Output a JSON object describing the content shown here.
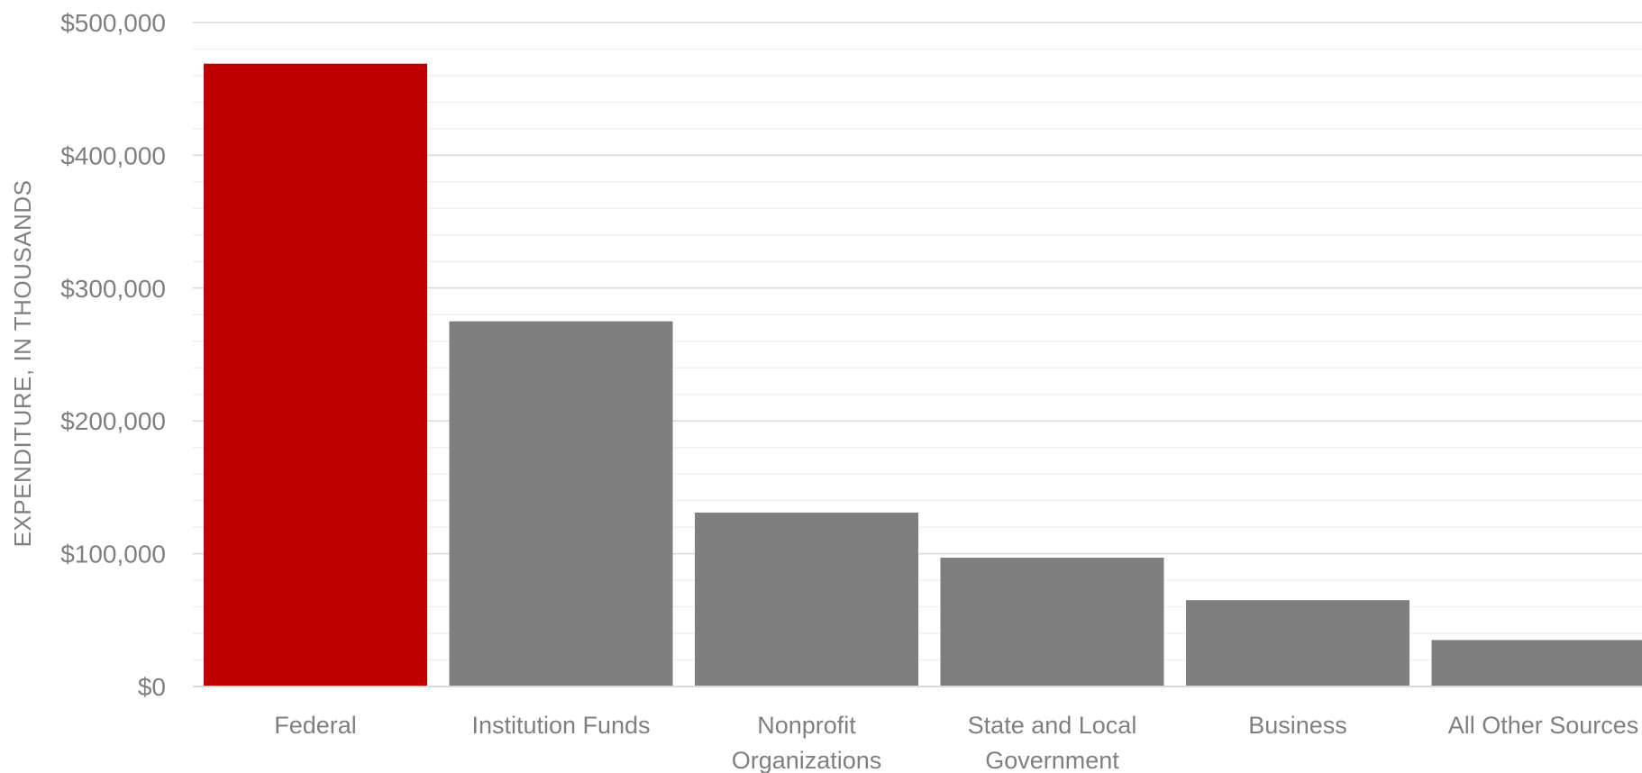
{
  "chart_data": {
    "type": "bar",
    "title": "",
    "xlabel": "",
    "ylabel": "EXPENDITURE, IN THOUSANDS",
    "ylim": [
      0,
      500000
    ],
    "y_ticks": [
      {
        "value": 0,
        "label": "$0"
      },
      {
        "value": 100000,
        "label": "$100,000"
      },
      {
        "value": 200000,
        "label": "$200,000"
      },
      {
        "value": 300000,
        "label": "$300,000"
      },
      {
        "value": 400000,
        "label": "$400,000"
      },
      {
        "value": 500000,
        "label": "$500,000"
      }
    ],
    "categories": [
      [
        "Federal"
      ],
      [
        "Institution Funds"
      ],
      [
        "Nonprofit",
        "Organizations"
      ],
      [
        "State and Local",
        "Government"
      ],
      [
        "Business"
      ],
      [
        "All Other Sources"
      ]
    ],
    "values": [
      469000,
      275000,
      131000,
      97000,
      65000,
      35000
    ],
    "bar_colors": [
      "#c00000",
      "#7f7f7f",
      "#7f7f7f",
      "#7f7f7f",
      "#7f7f7f",
      "#7f7f7f"
    ],
    "grid": true,
    "minor_grid": true,
    "legend": "none"
  }
}
